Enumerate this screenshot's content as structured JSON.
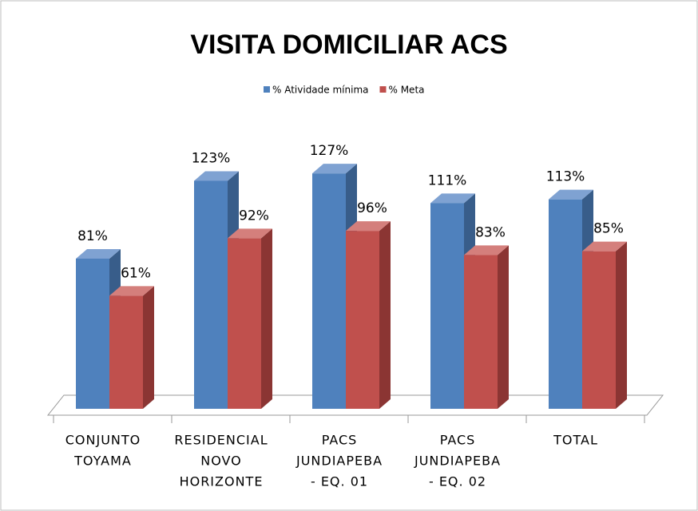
{
  "chart_data": {
    "type": "bar3d",
    "title": "VISITA DOMICILIAR ACS",
    "categories": [
      [
        "CONJUNTO",
        "TOYAMA"
      ],
      [
        "RESIDENCIAL",
        "NOVO",
        "HORIZONTE"
      ],
      [
        "PACS",
        "JUNDIAPEBA",
        "- EQ. 01"
      ],
      [
        "PACS",
        "JUNDIAPEBA",
        "- EQ. 02"
      ],
      [
        "TOTAL"
      ]
    ],
    "series": [
      {
        "name": "% Atividade mínima",
        "color": "#4f81bd",
        "side": "#385d8a",
        "top": "#7fa2d2",
        "values": [
          81,
          123,
          127,
          111,
          113
        ],
        "value_labels": [
          "81%",
          "123%",
          "127%",
          "111%",
          "113%"
        ]
      },
      {
        "name": "% Meta",
        "color": "#c0504d",
        "side": "#8b3533",
        "top": "#d47f7c",
        "values": [
          61,
          92,
          96,
          83,
          85
        ],
        "value_labels": [
          "61%",
          "92%",
          "96%",
          "83%",
          "85%"
        ]
      }
    ],
    "ylim": [
      0,
      140
    ],
    "legend": "top"
  }
}
